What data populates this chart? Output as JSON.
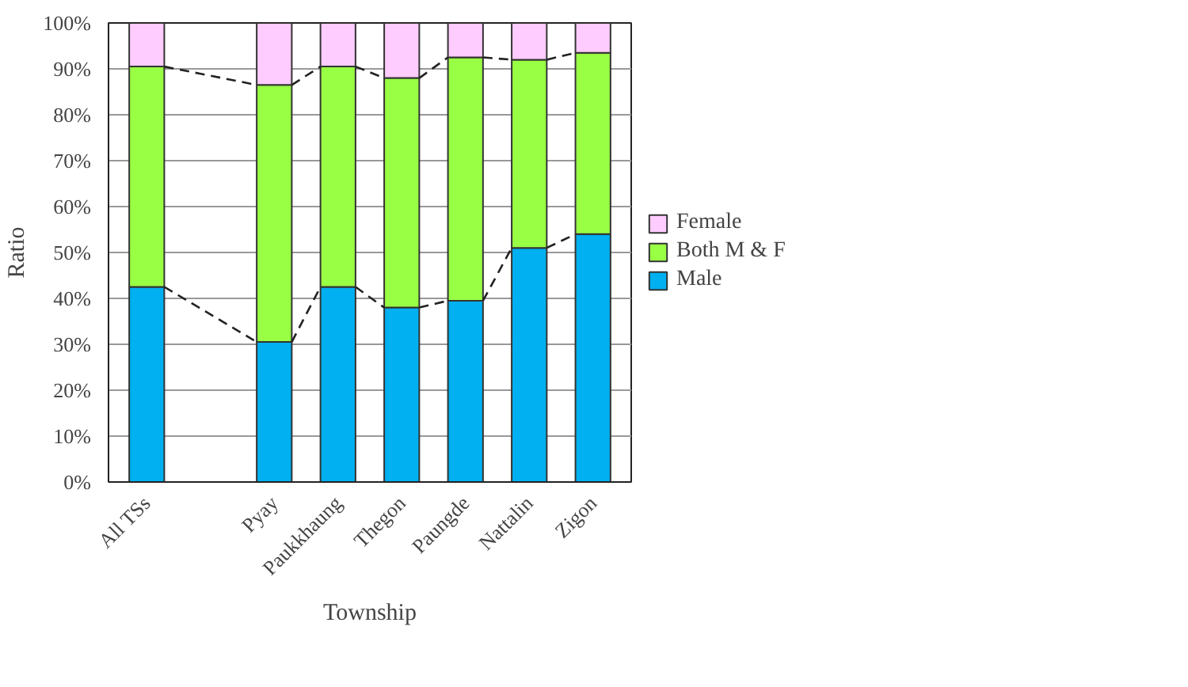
{
  "chart_data": {
    "type": "bar",
    "stacked": true,
    "xlabel": "Township",
    "ylabel": "Ratio",
    "categories": [
      "All TSs",
      null,
      "Pyay",
      "Paukkhaung",
      "Thegon",
      "Paungde",
      "Nattalin",
      "Zigon"
    ],
    "series": [
      {
        "name": "Male",
        "color": "#00b0f0",
        "values": [
          42.5,
          null,
          30.5,
          42.5,
          38,
          39.5,
          51,
          54
        ]
      },
      {
        "name": "Both M & F",
        "color": "#99ff44",
        "values": [
          48,
          null,
          56,
          48,
          50,
          53,
          41,
          39.5
        ]
      },
      {
        "name": "Female",
        "color": "#ffccff",
        "values": [
          9.5,
          null,
          13.5,
          9.5,
          12,
          7.5,
          8,
          6.5
        ]
      }
    ],
    "ylim": [
      0,
      100
    ],
    "yticks": [
      {
        "value": 0,
        "label": "0%"
      },
      {
        "value": 10,
        "label": "10%"
      },
      {
        "value": 20,
        "label": "20%"
      },
      {
        "value": 30,
        "label": "30%"
      },
      {
        "value": 40,
        "label": "40%"
      },
      {
        "value": 50,
        "label": "50%"
      },
      {
        "value": 60,
        "label": "60%"
      },
      {
        "value": 70,
        "label": "70%"
      },
      {
        "value": 80,
        "label": "80%"
      },
      {
        "value": 90,
        "label": "90%"
      },
      {
        "value": 100,
        "label": "100%"
      }
    ],
    "grid": "y",
    "legend": "right",
    "line_style": "dashed"
  }
}
